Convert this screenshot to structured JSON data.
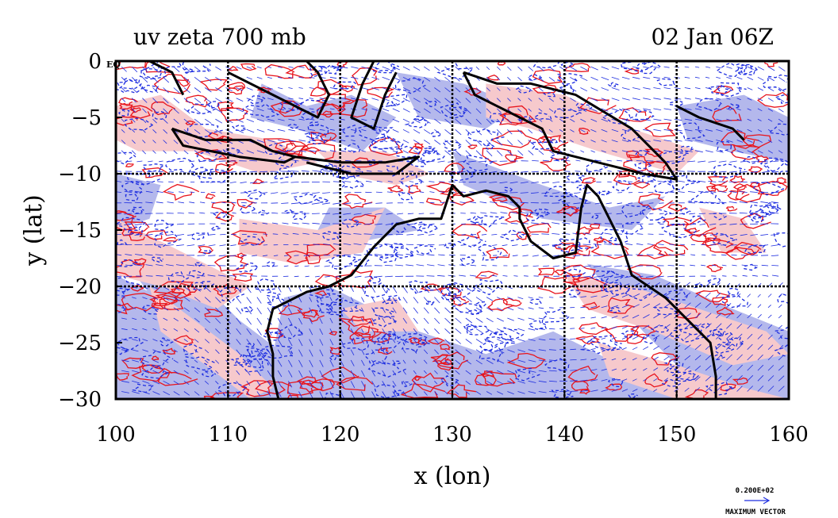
{
  "title_left": "uv zeta 700 mb",
  "title_right": "02 Jan 06Z",
  "xlabel": "x (lon)",
  "ylabel": "y (lat)",
  "corner_tag": "EQ",
  "legend": {
    "value": "0.200E+02",
    "label": "MAXIMUM VECTOR"
  },
  "chart_data": {
    "type": "map",
    "variable": "uv zeta",
    "level": "700 mb",
    "time": "02 Jan 06Z",
    "xlim": [
      100,
      160
    ],
    "ylim": [
      -30,
      0
    ],
    "xticks": [
      100,
      110,
      120,
      130,
      140,
      150,
      160
    ],
    "yticks": [
      0,
      -5,
      -10,
      -15,
      -20,
      -25,
      -30
    ],
    "xtick_labels": [
      "100",
      "110",
      "120",
      "130",
      "140",
      "150",
      "160"
    ],
    "ytick_labels": [
      "0",
      "−5",
      "−10",
      "−15",
      "−20",
      "−25",
      "−30"
    ],
    "gridlines_lon": [
      110,
      120,
      130,
      140,
      150
    ],
    "gridlines_lat": [
      -10,
      -20
    ],
    "colors": {
      "positive_contour": "#e8141c",
      "positive_fill": "#f6c9cc",
      "negative_contour": "#1e2ee0",
      "negative_fill": "#b4b8ec",
      "vectors": "#1e2ee0",
      "coastline": "#000000"
    },
    "vector_reference_magnitude": 20
  }
}
